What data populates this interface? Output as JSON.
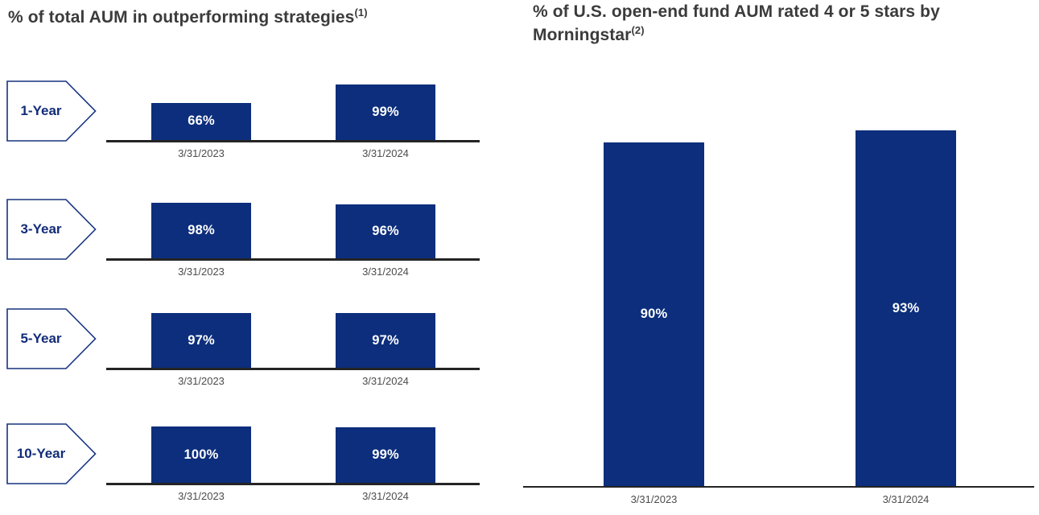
{
  "page": {
    "background": "#ffffff"
  },
  "colors": {
    "bar_fill": "#0c2e7c",
    "chevron_outline": "#16337f",
    "chevron_text": "#122c78",
    "title_text": "#3b3b3b",
    "axis_color": "#242424",
    "date_text": "#4c4c4c",
    "value_text": "#ffffff"
  },
  "chart_data": [
    {
      "type": "bar",
      "variant": "four-row-grouped-bars-with-chevron-row-labels",
      "title": "% of total AUM in outperforming strategies",
      "title_superscript": "(1)",
      "categories": [
        "3/31/2023",
        "3/31/2024"
      ],
      "value_suffix": "%",
      "ylim": [
        0,
        100
      ],
      "grid": false,
      "legend": false,
      "value_label_position": "inside-center",
      "row_groups": [
        {
          "label": "1-Year",
          "values": [
            66,
            99
          ],
          "value_labels": [
            "66%",
            "99%"
          ]
        },
        {
          "label": "3-Year",
          "values": [
            98,
            96
          ],
          "value_labels": [
            "98%",
            "96%"
          ]
        },
        {
          "label": "5-Year",
          "values": [
            97,
            97
          ],
          "value_labels": [
            "97%",
            "97%"
          ]
        },
        {
          "label": "10-Year",
          "values": [
            100,
            99
          ],
          "value_labels": [
            "100%",
            "99%"
          ]
        }
      ]
    },
    {
      "type": "bar",
      "variant": "two-column-bars",
      "title": "% of U.S. open-end fund AUM rated 4 or 5 stars by Morningstar",
      "title_superscript": "(2)",
      "categories": [
        "3/31/2023",
        "3/31/2024"
      ],
      "values": [
        90,
        93
      ],
      "value_labels": [
        "90%",
        "93%"
      ],
      "value_suffix": "%",
      "ylim": [
        0,
        100
      ],
      "grid": false,
      "legend": false,
      "value_label_position": "inside-center"
    }
  ]
}
